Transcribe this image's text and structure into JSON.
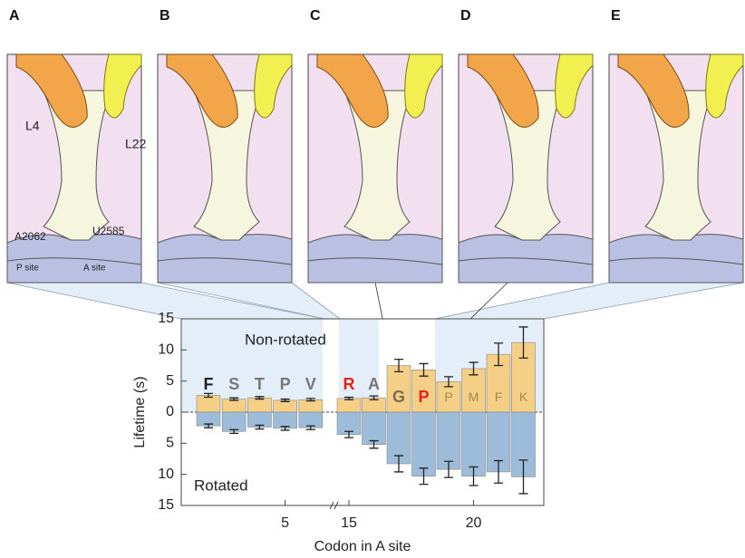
{
  "panels": {
    "labels": [
      "A",
      "B",
      "C",
      "D",
      "E"
    ],
    "annotations": [
      "L4",
      "L22",
      "A2062",
      "U2585",
      "P site",
      "A site"
    ]
  },
  "chart_data": {
    "type": "bar",
    "categories": [
      "F",
      "S",
      "T",
      "P",
      "V",
      "R",
      "A",
      "G",
      "P",
      "P",
      "M",
      "F",
      "K"
    ],
    "x": [
      2,
      3,
      4,
      5,
      6,
      15,
      16,
      17,
      18,
      19,
      20,
      21,
      22
    ],
    "label_colors": [
      "#222222",
      "#777777",
      "#777777",
      "#777777",
      "#777777",
      "#e8201c",
      "#777777",
      "#7a6a55",
      "#e8201c",
      "#a08850",
      "#a08850",
      "#a08850",
      "#a08850"
    ],
    "series": [
      {
        "name": "Non-rotated",
        "color": "#f5cf85",
        "values": [
          2.7,
          2.1,
          2.3,
          1.9,
          2.0,
          2.2,
          2.3,
          7.5,
          6.8,
          4.9,
          7.0,
          9.3,
          11.2
        ],
        "errors": [
          0.3,
          0.2,
          0.2,
          0.2,
          0.2,
          0.2,
          0.3,
          1.0,
          1.0,
          0.8,
          1.0,
          1.8,
          2.5
        ]
      },
      {
        "name": "Rotated",
        "color": "#9dbcd9",
        "values": [
          -2.2,
          -3.1,
          -2.4,
          -2.6,
          -2.5,
          -3.6,
          -5.2,
          -8.3,
          -10.3,
          -9.2,
          -10.3,
          -9.6,
          -10.4
        ],
        "errors": [
          0.3,
          0.3,
          0.3,
          0.3,
          0.3,
          0.5,
          0.6,
          1.3,
          1.3,
          1.3,
          1.5,
          1.8,
          2.7
        ]
      }
    ],
    "ylim": [
      -15,
      15
    ],
    "yticks": [
      {
        "value": -15,
        "label": "15"
      },
      {
        "value": -10,
        "label": "10"
      },
      {
        "value": -5,
        "label": "5"
      },
      0,
      5,
      10,
      15
    ],
    "xticks": [
      5,
      15,
      20
    ],
    "xlabel": "Codon in A site",
    "ylabel": "Lifetime (s)"
  }
}
